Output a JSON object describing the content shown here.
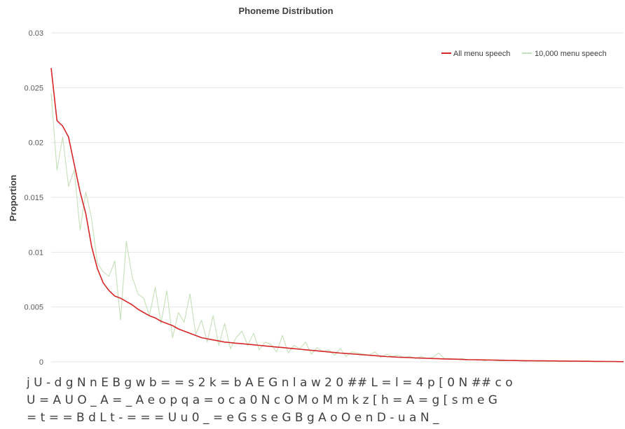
{
  "chart_data": {
    "type": "line",
    "title": "Phoneme Distribution",
    "ylabel": "Proportion",
    "xlabel": "",
    "ylim": [
      0,
      0.03
    ],
    "y_ticks": [
      {
        "value": 0,
        "label": "0"
      },
      {
        "value": 0.005,
        "label": "0.005"
      },
      {
        "value": 0.01,
        "label": "0.01"
      },
      {
        "value": 0.015,
        "label": "0.015"
      },
      {
        "value": 0.02,
        "label": "0.02"
      },
      {
        "value": 0.025,
        "label": "0.025"
      },
      {
        "value": 0.03,
        "label": "0.03"
      }
    ],
    "grid": true,
    "legend_position": "top-right",
    "x_tick_label_rows": [
      "j U - d g N n E B g w b = = s 2 k = b A E G n l a w 2 0 ## L = l = 4 p [ 0 N ## c o",
      "U = A U O _ A = _ A e o p q a = o c a 0 N c O M o M m k z [ h = A = g [ s m e G",
      "= t = = B d L t - = = = U u 0 _ = e G s s e G B g A o O e n D - u a N _"
    ],
    "series": [
      {
        "name": "All menu speech",
        "color": "#d62728",
        "values": [
          0.0268,
          0.022,
          0.0215,
          0.0205,
          0.018,
          0.0155,
          0.0135,
          0.0105,
          0.0085,
          0.0072,
          0.0065,
          0.006,
          0.0058,
          0.0055,
          0.0052,
          0.0048,
          0.0045,
          0.0042,
          0.004,
          0.0037,
          0.0035,
          0.0033,
          0.003,
          0.0028,
          0.0026,
          0.0024,
          0.0022,
          0.0021,
          0.002,
          0.0019,
          0.0018,
          0.00175,
          0.0017,
          0.00165,
          0.0016,
          0.00155,
          0.0015,
          0.00145,
          0.0014,
          0.00135,
          0.0013,
          0.00125,
          0.0012,
          0.00115,
          0.0011,
          0.00105,
          0.001,
          0.00095,
          0.0009,
          0.00085,
          0.0008,
          0.00076,
          0.00072,
          0.00068,
          0.00064,
          0.0006,
          0.00056,
          0.00052,
          0.00048,
          0.00045,
          0.00042,
          0.0004,
          0.00038,
          0.00036,
          0.00034,
          0.00032,
          0.0003,
          0.00028,
          0.00026,
          0.00025,
          0.00024,
          0.00022,
          0.0002,
          0.00019,
          0.00018,
          0.00017,
          0.00016,
          0.00015,
          0.00014,
          0.00013,
          0.00012,
          0.00011,
          0.0001,
          0.0001,
          9e-05,
          9e-05,
          8e-05,
          8e-05,
          7e-05,
          7e-05,
          6e-05,
          6e-05,
          5e-05,
          5e-05,
          4e-05,
          4e-05,
          3e-05,
          3e-05,
          2e-05,
          1e-05
        ]
      },
      {
        "name": "10,000 menu speech",
        "color": "#c5dfb9",
        "values": [
          0.0245,
          0.0175,
          0.0205,
          0.016,
          0.0175,
          0.012,
          0.0155,
          0.013,
          0.009,
          0.0082,
          0.0078,
          0.0092,
          0.0038,
          0.011,
          0.0078,
          0.0062,
          0.0058,
          0.0042,
          0.0068,
          0.0035,
          0.0065,
          0.0022,
          0.0045,
          0.0036,
          0.0062,
          0.0025,
          0.0038,
          0.0018,
          0.0042,
          0.0015,
          0.0035,
          0.0012,
          0.0022,
          0.0028,
          0.0015,
          0.0026,
          0.0011,
          0.0018,
          0.0016,
          0.0009,
          0.0024,
          0.0008,
          0.0015,
          0.0012,
          0.0018,
          0.0007,
          0.0013,
          0.0009,
          0.0011,
          0.0006,
          0.0012,
          0.0005,
          0.0009,
          0.0008,
          0.0007,
          0.0006,
          0.0009,
          0.0004,
          0.0007,
          0.0005,
          0.0006,
          0.0004,
          0.0005,
          0.0003,
          0.0005,
          0.0003,
          0.0004,
          0.0008,
          0.0003,
          0.0003,
          0.0002,
          0.0003,
          0.0002,
          0.0002,
          0.0002,
          0.0001,
          0.0002,
          0.0001,
          0.0001,
          0.0001,
          0.0001,
          0.0001,
          5e-05,
          0.0001,
          5e-05,
          5e-05,
          5e-05,
          5e-05,
          5e-05,
          3e-05,
          3e-05,
          3e-05,
          2e-05,
          2e-05,
          2e-05,
          1e-05,
          1e-05,
          1e-05,
          1e-05,
          0.0
        ]
      }
    ]
  }
}
